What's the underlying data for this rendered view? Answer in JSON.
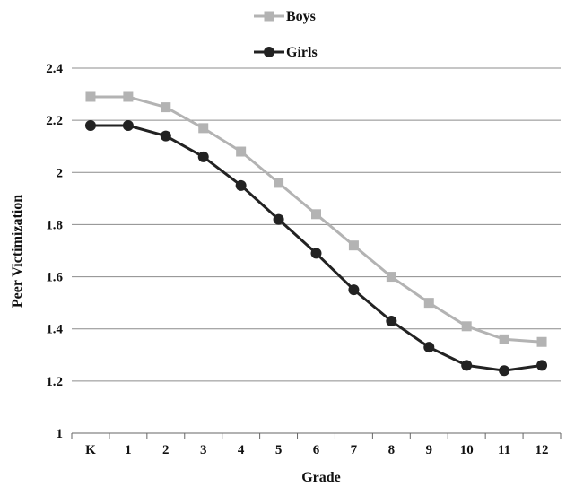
{
  "chart_data": {
    "type": "line",
    "title": "",
    "xlabel": "Grade",
    "ylabel": "Peer Victimization",
    "categories": [
      "K",
      "1",
      "2",
      "3",
      "4",
      "5",
      "6",
      "7",
      "8",
      "9",
      "10",
      "11",
      "12"
    ],
    "ylim": [
      1,
      2.4
    ],
    "yticks": [
      "1",
      "1.2",
      "1.4",
      "1.6",
      "1.8",
      "2",
      "2.2",
      "2.4"
    ],
    "ytick_values": [
      1,
      1.2,
      1.4,
      1.6,
      1.8,
      2,
      2.2,
      2.4
    ],
    "grid": true,
    "legend_position": "top-center",
    "series": [
      {
        "name": "Boys",
        "marker": "square",
        "color": "#b3b3b3",
        "values": [
          2.29,
          2.29,
          2.25,
          2.17,
          2.08,
          1.96,
          1.84,
          1.72,
          1.6,
          1.5,
          1.41,
          1.36,
          1.35
        ]
      },
      {
        "name": "Girls",
        "marker": "circle",
        "color": "#222222",
        "values": [
          2.18,
          2.18,
          2.14,
          2.06,
          1.95,
          1.82,
          1.69,
          1.55,
          1.43,
          1.33,
          1.26,
          1.24,
          1.26
        ]
      }
    ]
  }
}
